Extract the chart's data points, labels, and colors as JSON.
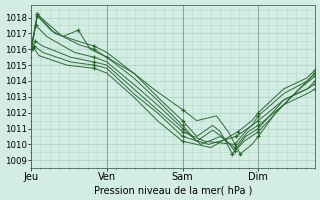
{
  "bg_color": "#d4ede4",
  "grid_color": "#b0d8c8",
  "line_color": "#2a6632",
  "ylim": [
    1008.5,
    1018.8
  ],
  "yticks": [
    1009,
    1010,
    1011,
    1012,
    1013,
    1014,
    1015,
    1016,
    1017,
    1018
  ],
  "xlabel": "Pression niveau de la mer( hPa )",
  "day_labels": [
    "Jeu",
    "Ven",
    "Sam",
    "Dim"
  ],
  "day_positions": [
    0,
    96,
    192,
    288
  ],
  "xlim": [
    0,
    360
  ],
  "series": [
    {
      "points": [
        [
          0,
          1016.0
        ],
        [
          8,
          1018.2
        ],
        [
          30,
          1017.0
        ],
        [
          60,
          1016.5
        ],
        [
          80,
          1016.2
        ],
        [
          96,
          1015.8
        ],
        [
          130,
          1014.5
        ],
        [
          160,
          1013.0
        ],
        [
          192,
          1011.5
        ],
        [
          210,
          1010.5
        ],
        [
          230,
          1011.2
        ],
        [
          240,
          1010.8
        ],
        [
          255,
          1009.4
        ],
        [
          270,
          1010.2
        ],
        [
          288,
          1010.8
        ],
        [
          320,
          1012.5
        ],
        [
          350,
          1014.0
        ],
        [
          360,
          1014.5
        ]
      ],
      "markers": [
        0,
        8,
        80,
        192,
        255,
        288,
        360
      ]
    },
    {
      "points": [
        [
          0,
          1016.0
        ],
        [
          8,
          1018.1
        ],
        [
          25,
          1017.2
        ],
        [
          60,
          1016.3
        ],
        [
          80,
          1016.0
        ],
        [
          96,
          1015.5
        ],
        [
          130,
          1014.2
        ],
        [
          160,
          1012.8
        ],
        [
          192,
          1011.2
        ],
        [
          210,
          1010.2
        ],
        [
          230,
          1010.9
        ],
        [
          245,
          1010.4
        ],
        [
          258,
          1009.6
        ],
        [
          272,
          1010.5
        ],
        [
          288,
          1011.0
        ],
        [
          320,
          1012.8
        ],
        [
          350,
          1013.5
        ],
        [
          360,
          1013.8
        ]
      ],
      "markers": [
        0,
        8,
        80,
        192,
        258,
        288,
        360
      ]
    },
    {
      "points": [
        [
          0,
          1016.0
        ],
        [
          6,
          1017.5
        ],
        [
          20,
          1016.8
        ],
        [
          55,
          1015.8
        ],
        [
          80,
          1015.5
        ],
        [
          96,
          1015.2
        ],
        [
          130,
          1013.8
        ],
        [
          160,
          1012.5
        ],
        [
          192,
          1011.0
        ],
        [
          215,
          1010.0
        ],
        [
          240,
          1010.5
        ],
        [
          258,
          1009.8
        ],
        [
          275,
          1010.8
        ],
        [
          288,
          1011.2
        ],
        [
          320,
          1012.5
        ],
        [
          350,
          1013.2
        ],
        [
          360,
          1013.5
        ]
      ],
      "markers": [
        0,
        6,
        80,
        192,
        258,
        288,
        360
      ]
    },
    {
      "points": [
        [
          0,
          1016.0
        ],
        [
          5,
          1016.5
        ],
        [
          15,
          1016.2
        ],
        [
          50,
          1015.5
        ],
        [
          80,
          1015.2
        ],
        [
          96,
          1015.0
        ],
        [
          130,
          1013.5
        ],
        [
          160,
          1012.2
        ],
        [
          192,
          1010.8
        ],
        [
          220,
          1010.2
        ],
        [
          258,
          1010.0
        ],
        [
          275,
          1011.0
        ],
        [
          288,
          1011.5
        ],
        [
          320,
          1012.8
        ],
        [
          350,
          1013.5
        ],
        [
          360,
          1014.0
        ]
      ],
      "markers": [
        0,
        5,
        80,
        192,
        258,
        288,
        360
      ]
    },
    {
      "points": [
        [
          0,
          1016.0
        ],
        [
          4,
          1016.2
        ],
        [
          15,
          1015.8
        ],
        [
          50,
          1015.2
        ],
        [
          80,
          1015.0
        ],
        [
          96,
          1014.8
        ],
        [
          130,
          1013.2
        ],
        [
          160,
          1012.0
        ],
        [
          192,
          1010.5
        ],
        [
          225,
          1010.0
        ],
        [
          260,
          1010.5
        ],
        [
          280,
          1011.2
        ],
        [
          288,
          1011.8
        ],
        [
          320,
          1013.2
        ],
        [
          350,
          1014.0
        ],
        [
          360,
          1014.5
        ]
      ],
      "markers": [
        0,
        4,
        80,
        192,
        260,
        288,
        360
      ]
    },
    {
      "points": [
        [
          0,
          1016.0
        ],
        [
          3,
          1016.1
        ],
        [
          10,
          1015.6
        ],
        [
          45,
          1015.0
        ],
        [
          80,
          1014.8
        ],
        [
          96,
          1014.5
        ],
        [
          130,
          1013.0
        ],
        [
          160,
          1011.5
        ],
        [
          192,
          1010.2
        ],
        [
          228,
          1009.8
        ],
        [
          262,
          1010.8
        ],
        [
          280,
          1011.5
        ],
        [
          288,
          1012.0
        ],
        [
          320,
          1013.5
        ],
        [
          350,
          1014.2
        ],
        [
          360,
          1014.7
        ]
      ],
      "markers": [
        0,
        3,
        80,
        192,
        262,
        288,
        360
      ]
    },
    {
      "points": [
        [
          0,
          1016.0
        ],
        [
          8,
          1018.2
        ],
        [
          40,
          1016.8
        ],
        [
          60,
          1017.2
        ],
        [
          75,
          1016.0
        ],
        [
          96,
          1015.5
        ],
        [
          130,
          1014.5
        ],
        [
          155,
          1013.5
        ],
        [
          192,
          1012.2
        ],
        [
          210,
          1011.5
        ],
        [
          235,
          1011.8
        ],
        [
          250,
          1010.8
        ],
        [
          265,
          1009.4
        ],
        [
          280,
          1010.0
        ],
        [
          288,
          1010.5
        ],
        [
          310,
          1012.0
        ],
        [
          340,
          1013.5
        ],
        [
          360,
          1014.3
        ]
      ],
      "markers": [
        0,
        8,
        60,
        96,
        192,
        265,
        288,
        360
      ]
    }
  ]
}
